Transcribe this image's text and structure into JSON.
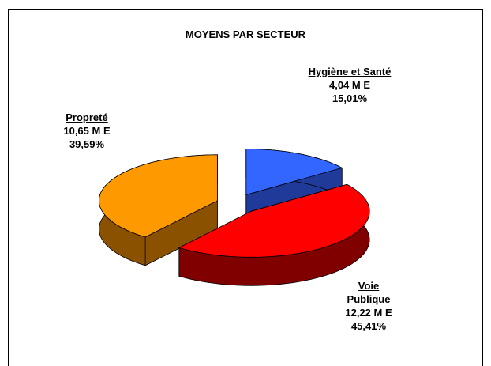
{
  "chart_data": {
    "type": "pie",
    "title": "MOYENS PAR SECTEUR",
    "categories": [
      "Hygiène et Santé",
      "Voie Publique",
      "Propreté"
    ],
    "values": [
      15.01,
      45.41,
      39.59
    ],
    "value_labels": [
      "15,01%",
      "45,41%",
      "39,59%"
    ],
    "amounts": [
      4.04,
      12.22,
      10.65
    ],
    "amount_labels": [
      "4,04 M E",
      "12,22 M E",
      "10,65 M E"
    ],
    "colors": [
      "#3366ff",
      "#ff0000",
      "#ff9900"
    ],
    "side_colors": [
      "#1f3a99",
      "#800000",
      "#8a5200"
    ]
  }
}
